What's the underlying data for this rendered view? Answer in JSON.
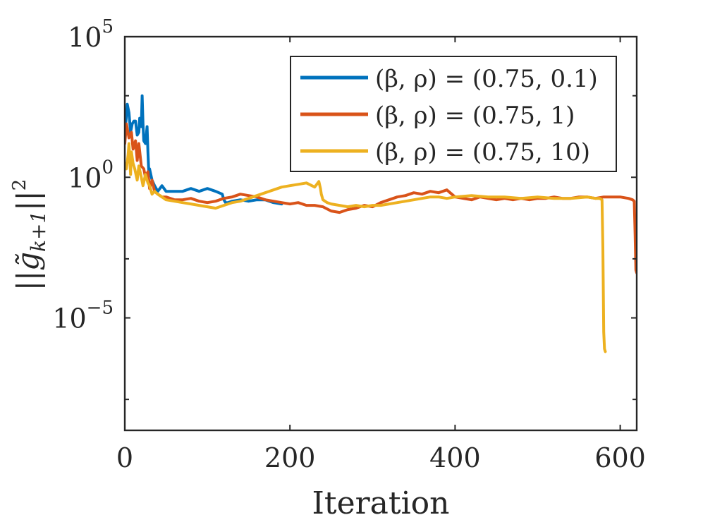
{
  "chart_data": {
    "type": "line",
    "title": "",
    "xlabel": "Iteration",
    "ylabel_base": "||",
    "ylabel_symbol": "g̃",
    "ylabel_sub": "k+1",
    "ylabel_close": "||",
    "ylabel_sup": "2",
    "yscale": "log",
    "xlim": [
      0,
      620
    ],
    "ylim_log10": [
      -9,
      5
    ],
    "x_ticks": [
      {
        "value": 0,
        "label": "0"
      },
      {
        "value": 200,
        "label": "200"
      },
      {
        "value": 400,
        "label": "400"
      },
      {
        "value": 600,
        "label": "600"
      }
    ],
    "y_ticks": [
      {
        "log": 5,
        "base": "10",
        "exp": "5"
      },
      {
        "log": 0,
        "base": "10",
        "exp": "0"
      },
      {
        "log": -5,
        "base": "10",
        "exp": "−5"
      }
    ],
    "y_minor_ticks_log": [
      -7.9,
      2.9,
      -2.9
    ],
    "legend_position": "top-right",
    "series": [
      {
        "name": "(β, ρ) = (0.75, 0.1)",
        "color": "#0072BD",
        "x": [
          0,
          2,
          3,
          5,
          7,
          9,
          11,
          13,
          15,
          17,
          18,
          20,
          21,
          22,
          23,
          25,
          27,
          28,
          29,
          30,
          33,
          36,
          40,
          45,
          50,
          60,
          70,
          80,
          90,
          100,
          110,
          118,
          120,
          122,
          125,
          130,
          140,
          150,
          160,
          170,
          180,
          190
        ],
        "log10y": [
          1.5,
          2.2,
          2.6,
          2.3,
          1.6,
          1.9,
          2.0,
          2.0,
          1.5,
          1.6,
          2.1,
          1.8,
          2.9,
          1.9,
          1.3,
          1.2,
          1.8,
          0.9,
          0.2,
          0.3,
          -0.1,
          -0.3,
          -0.5,
          -0.3,
          -0.5,
          -0.5,
          -0.5,
          -0.4,
          -0.5,
          -0.4,
          -0.5,
          -0.6,
          -0.8,
          -0.9,
          -0.9,
          -0.85,
          -0.8,
          -0.85,
          -0.8,
          -0.8,
          -0.9,
          -0.95
        ]
      },
      {
        "name": "(β, ρ) = (0.75, 1)",
        "color": "#D95319",
        "x": [
          0,
          2,
          5,
          8,
          10,
          13,
          15,
          17,
          20,
          23,
          25,
          28,
          30,
          33,
          36,
          40,
          45,
          50,
          60,
          70,
          80,
          90,
          100,
          110,
          120,
          130,
          140,
          150,
          160,
          170,
          180,
          190,
          200,
          210,
          220,
          230,
          240,
          250,
          260,
          270,
          280,
          290,
          300,
          310,
          320,
          330,
          340,
          350,
          360,
          370,
          380,
          390,
          400,
          410,
          420,
          430,
          440,
          450,
          460,
          470,
          480,
          490,
          500,
          510,
          520,
          530,
          540,
          550,
          560,
          570,
          580,
          590,
          600,
          610,
          615,
          617,
          618,
          619,
          620
        ],
        "log10y": [
          1.2,
          1.9,
          1.4,
          1.6,
          1.0,
          1.3,
          0.6,
          1.2,
          0.4,
          0.3,
          0.0,
          0.2,
          -0.4,
          -0.1,
          -0.5,
          -0.6,
          -0.7,
          -0.7,
          -0.8,
          -0.8,
          -0.75,
          -0.85,
          -0.9,
          -0.85,
          -0.75,
          -0.7,
          -0.6,
          -0.65,
          -0.7,
          -0.8,
          -0.85,
          -0.9,
          -0.95,
          -0.9,
          -1.0,
          -1.0,
          -1.05,
          -1.2,
          -1.25,
          -1.15,
          -1.1,
          -1.0,
          -1.05,
          -0.9,
          -0.8,
          -0.7,
          -0.65,
          -0.55,
          -0.6,
          -0.5,
          -0.55,
          -0.45,
          -0.7,
          -0.75,
          -0.8,
          -0.7,
          -0.75,
          -0.8,
          -0.75,
          -0.8,
          -0.75,
          -0.8,
          -0.75,
          -0.75,
          -0.7,
          -0.75,
          -0.75,
          -0.7,
          -0.7,
          -0.75,
          -0.7,
          -0.7,
          -0.7,
          -0.75,
          -0.8,
          -0.85,
          -2.0,
          -3.3,
          -3.4
        ]
      },
      {
        "name": "(β, ρ) = (0.75, 10)",
        "color": "#EDB120",
        "x": [
          0,
          2,
          4,
          5,
          7,
          8,
          10,
          12,
          15,
          17,
          20,
          22,
          25,
          28,
          30,
          33,
          36,
          40,
          45,
          50,
          60,
          70,
          80,
          90,
          100,
          110,
          120,
          130,
          140,
          150,
          160,
          170,
          180,
          190,
          200,
          210,
          220,
          230,
          235,
          237,
          238,
          240,
          245,
          250,
          260,
          270,
          280,
          290,
          300,
          310,
          320,
          330,
          340,
          350,
          360,
          370,
          380,
          390,
          400,
          420,
          440,
          460,
          480,
          500,
          520,
          540,
          560,
          570,
          575,
          578,
          579,
          580,
          581,
          582
        ],
        "log10y": [
          0.5,
          0.3,
          0.8,
          1.2,
          0.1,
          0.9,
          0.5,
          0.3,
          -0.1,
          0.4,
          0.0,
          -0.3,
          0.1,
          -0.2,
          -0.3,
          -0.6,
          -0.5,
          -0.6,
          -0.7,
          -0.8,
          -0.85,
          -0.9,
          -0.95,
          -1.0,
          -1.05,
          -1.1,
          -1.0,
          -0.9,
          -0.85,
          -0.75,
          -0.65,
          -0.55,
          -0.45,
          -0.35,
          -0.3,
          -0.25,
          -0.2,
          -0.35,
          -0.15,
          -0.4,
          -0.6,
          -0.8,
          -0.9,
          -0.95,
          -1.0,
          -1.05,
          -1.0,
          -1.05,
          -1.0,
          -1.0,
          -0.95,
          -0.9,
          -0.85,
          -0.8,
          -0.75,
          -0.7,
          -0.7,
          -0.75,
          -0.7,
          -0.65,
          -0.7,
          -0.7,
          -0.75,
          -0.7,
          -0.75,
          -0.75,
          -0.7,
          -0.75,
          -0.75,
          -0.8,
          -2.5,
          -5.5,
          -6.1,
          -6.2
        ]
      }
    ]
  }
}
